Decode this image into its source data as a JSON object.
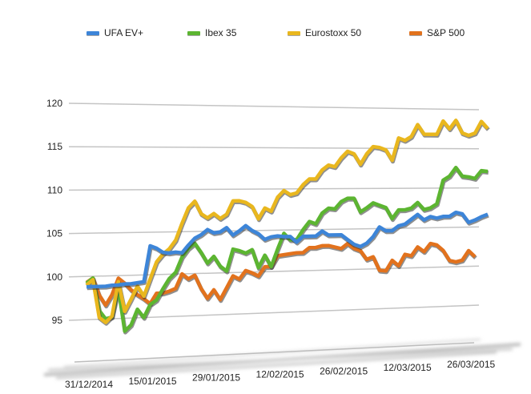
{
  "chart_data": {
    "type": "line",
    "title": "",
    "xlabel": "",
    "ylabel": "",
    "ylim": [
      95,
      120
    ],
    "yticks": [
      "95",
      "100",
      "105",
      "110",
      "115",
      "120"
    ],
    "grid": true,
    "legend_position": "top",
    "x_tick_labels": [
      {
        "index": 0,
        "label": "31/12/2014"
      },
      {
        "index": 10,
        "label": "15/01/2015"
      },
      {
        "index": 20,
        "label": "29/01/2015"
      },
      {
        "index": 30,
        "label": "12/02/2015"
      },
      {
        "index": 40,
        "label": "26/02/2015"
      },
      {
        "index": 50,
        "label": "12/03/2015"
      },
      {
        "index": 60,
        "label": "26/03/2015"
      }
    ],
    "series": [
      {
        "name": "UFA EV+",
        "color": "#3d85d8",
        "values": [
          98.8,
          98.8,
          98.8,
          98.8,
          98.9,
          98.9,
          99.0,
          99.0,
          99.1,
          99.2,
          103.4,
          103.1,
          102.6,
          102.5,
          102.6,
          102.5,
          103.4,
          104.2,
          104.6,
          105.2,
          104.8,
          104.9,
          105.4,
          104.5,
          105.0,
          105.6,
          105.0,
          104.6,
          103.9,
          104.2,
          104.3,
          104.2,
          104.2,
          103.5,
          104.2,
          104.2,
          104.2,
          104.8,
          104.3,
          104.3,
          104.3,
          103.7,
          103.1,
          102.8,
          103.2,
          104.0,
          105.2,
          104.7,
          104.7,
          105.3,
          105.5,
          106.1,
          106.7,
          106.0,
          106.4,
          106.2,
          106.4,
          106.4,
          106.9,
          106.7,
          105.6,
          105.9,
          106.3,
          106.6
        ]
      },
      {
        "name": "Ibex 35",
        "color": "#5cb531",
        "values": [
          99.2,
          99.8,
          96.0,
          95.0,
          95.2,
          98.5,
          93.5,
          94.2,
          96.0,
          95.0,
          96.5,
          97.0,
          98.3,
          99.5,
          100.2,
          102.0,
          103.0,
          103.6,
          102.5,
          101.2,
          102.0,
          100.8,
          100.2,
          102.8,
          102.6,
          102.3,
          102.7,
          100.5,
          102.0,
          100.6,
          102.7,
          104.6,
          103.8,
          103.8,
          105.0,
          106.0,
          105.7,
          107.0,
          107.6,
          107.5,
          108.4,
          108.8,
          108.8,
          107.1,
          107.6,
          108.2,
          107.9,
          107.6,
          106.2,
          107.3,
          107.3,
          107.5,
          108.2,
          107.3,
          107.5,
          108.0,
          111.0,
          111.5,
          112.6,
          111.5,
          111.4,
          111.2,
          112.2,
          112.1
        ]
      },
      {
        "name": "Eurostoxx 50",
        "color": "#e9b71e",
        "values": [
          99.0,
          99.6,
          95.2,
          94.6,
          95.3,
          99.3,
          95.8,
          97.2,
          98.7,
          97.5,
          99.5,
          101.5,
          102.4,
          103.0,
          104.0,
          106.0,
          107.8,
          108.6,
          107.1,
          106.6,
          107.1,
          106.5,
          107.0,
          108.6,
          108.6,
          108.4,
          107.9,
          106.4,
          107.7,
          107.3,
          109.0,
          109.8,
          109.3,
          109.5,
          110.5,
          111.2,
          111.2,
          112.3,
          112.9,
          112.7,
          113.8,
          114.6,
          114.3,
          113.0,
          114.3,
          115.2,
          115.1,
          114.8,
          113.5,
          116.3,
          116.0,
          116.5,
          118.0,
          116.8,
          116.8,
          116.8,
          118.5,
          117.5,
          118.6,
          117.0,
          116.7,
          117.0,
          118.5,
          117.6
        ]
      },
      {
        "name": "S&P 500",
        "color": "#e2721d",
        "values": [
          99.3,
          99.8,
          97.8,
          96.6,
          97.8,
          99.7,
          99.1,
          98.3,
          97.7,
          97.2,
          96.6,
          97.8,
          97.8,
          98.0,
          98.3,
          100.0,
          99.4,
          99.8,
          98.2,
          97.0,
          98.0,
          96.8,
          98.2,
          99.6,
          99.2,
          100.2,
          99.9,
          99.5,
          100.6,
          100.6,
          101.9,
          102.0,
          102.1,
          102.2,
          102.2,
          102.8,
          102.8,
          103.0,
          103.0,
          102.8,
          102.6,
          103.2,
          102.6,
          102.3,
          101.2,
          101.5,
          99.8,
          99.7,
          101.0,
          100.3,
          101.7,
          101.5,
          102.6,
          102.0,
          103.0,
          102.8,
          102.1,
          100.8,
          100.6,
          100.8,
          102.0,
          101.2
        ]
      }
    ]
  }
}
